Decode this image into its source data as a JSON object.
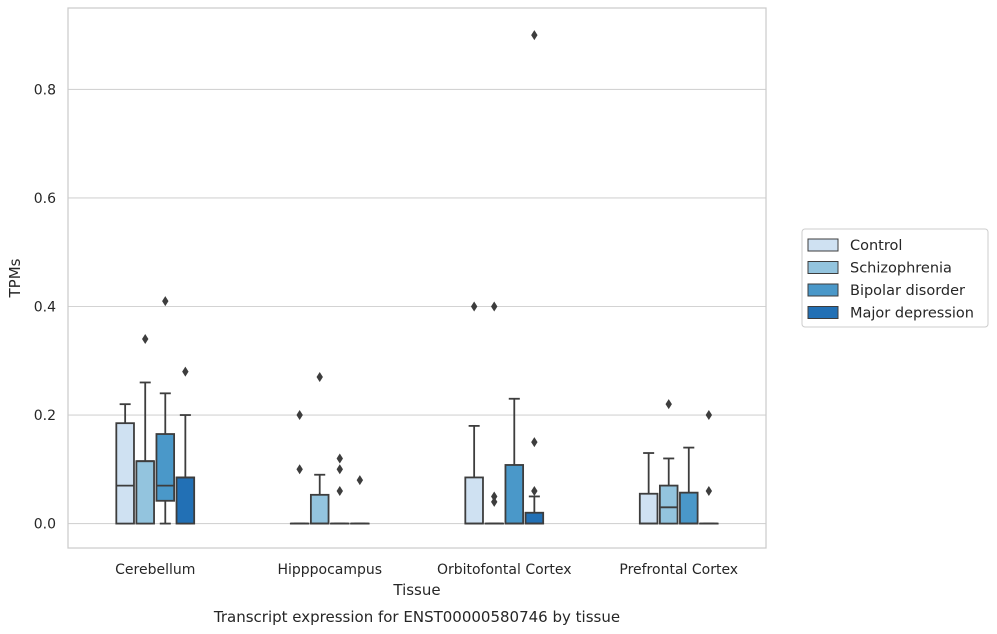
{
  "chart_data": {
    "type": "box",
    "xlabel": "Tissue",
    "ylabel": "TPMs",
    "caption": "Transcript expression for ENST00000580746 by tissue",
    "ylim": [
      -0.045,
      0.95
    ],
    "yticks": [
      0.0,
      0.2,
      0.4,
      0.6,
      0.8
    ],
    "ytick_labels": [
      "0.0",
      "0.2",
      "0.4",
      "0.6",
      "0.8"
    ],
    "grid": "horizontal",
    "legend_position": "right",
    "categories": [
      "Cerebellum",
      "Hipppocampus",
      "Orbitofontal Cortex",
      "Prefrontal Cortex"
    ],
    "series": [
      {
        "name": "Control",
        "color": "#cfe1f2",
        "boxes": [
          {
            "q1": 0.0,
            "median": 0.07,
            "q3": 0.185,
            "whisker_low": 0.0,
            "whisker_high": 0.22,
            "outliers": []
          },
          {
            "q1": 0.0,
            "median": 0.0,
            "q3": 0.0,
            "whisker_low": 0.0,
            "whisker_high": 0.0,
            "outliers": [
              0.1,
              0.2
            ]
          },
          {
            "q1": 0.0,
            "median": 0.0,
            "q3": 0.085,
            "whisker_low": 0.0,
            "whisker_high": 0.18,
            "outliers": [
              0.4
            ]
          },
          {
            "q1": 0.0,
            "median": 0.0,
            "q3": 0.055,
            "whisker_low": 0.0,
            "whisker_high": 0.13,
            "outliers": []
          }
        ]
      },
      {
        "name": "Schizophrenia",
        "color": "#93c4de",
        "boxes": [
          {
            "q1": 0.0,
            "median": 0.115,
            "q3": 0.115,
            "whisker_low": 0.0,
            "whisker_high": 0.26,
            "outliers": [
              0.34
            ]
          },
          {
            "q1": 0.0,
            "median": 0.0,
            "q3": 0.053,
            "whisker_low": 0.0,
            "whisker_high": 0.09,
            "outliers": [
              0.27
            ]
          },
          {
            "q1": 0.0,
            "median": 0.0,
            "q3": 0.0,
            "whisker_low": 0.0,
            "whisker_high": 0.0,
            "outliers": [
              0.04,
              0.05,
              0.4
            ]
          },
          {
            "q1": 0.0,
            "median": 0.03,
            "q3": 0.07,
            "whisker_low": 0.0,
            "whisker_high": 0.12,
            "outliers": [
              0.22
            ]
          }
        ]
      },
      {
        "name": "Bipolar disorder",
        "color": "#4a98c9",
        "boxes": [
          {
            "q1": 0.042,
            "median": 0.07,
            "q3": 0.165,
            "whisker_low": 0.0,
            "whisker_high": 0.24,
            "outliers": [
              0.41
            ]
          },
          {
            "q1": 0.0,
            "median": 0.0,
            "q3": 0.0,
            "whisker_low": 0.0,
            "whisker_high": 0.0,
            "outliers": [
              0.06,
              0.1,
              0.12
            ]
          },
          {
            "q1": 0.0,
            "median": 0.0,
            "q3": 0.108,
            "whisker_low": 0.0,
            "whisker_high": 0.23,
            "outliers": []
          },
          {
            "q1": 0.0,
            "median": 0.0,
            "q3": 0.057,
            "whisker_low": 0.0,
            "whisker_high": 0.14,
            "outliers": []
          }
        ]
      },
      {
        "name": "Major depression",
        "color": "#2270b5",
        "boxes": [
          {
            "q1": 0.0,
            "median": 0.085,
            "q3": 0.085,
            "whisker_low": 0.0,
            "whisker_high": 0.2,
            "outliers": [
              0.28
            ]
          },
          {
            "q1": 0.0,
            "median": 0.0,
            "q3": 0.0,
            "whisker_low": 0.0,
            "whisker_high": 0.0,
            "outliers": [
              0.08
            ]
          },
          {
            "q1": 0.0,
            "median": 0.0,
            "q3": 0.02,
            "whisker_low": 0.0,
            "whisker_high": 0.05,
            "outliers": [
              0.06,
              0.15,
              0.9
            ]
          },
          {
            "q1": 0.0,
            "median": 0.0,
            "q3": 0.0,
            "whisker_low": 0.0,
            "whisker_high": 0.0,
            "outliers": [
              0.06,
              0.2
            ]
          }
        ]
      }
    ]
  }
}
